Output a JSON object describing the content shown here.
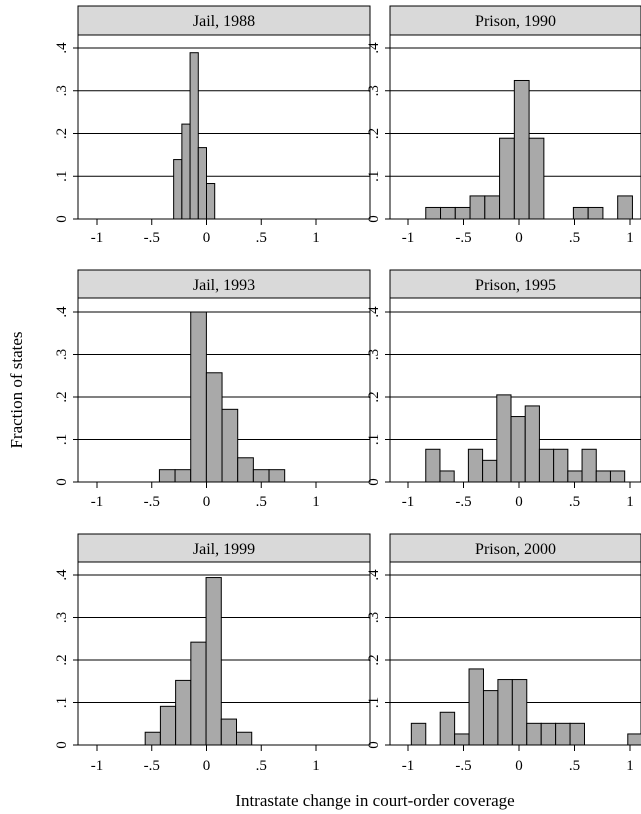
{
  "figure": {
    "ylabel": "Fraction of states",
    "xlabel": "Intrastate change in court-order coverage"
  },
  "style": {
    "bar_fill": "#a9a9a9",
    "header_fill": "#d9d9d9",
    "line": "#000000"
  },
  "chart_data": [
    {
      "type": "bar",
      "title": "Jail, 1988",
      "xticks": [
        "-1",
        "-.5",
        "0",
        ".5",
        "1"
      ],
      "yticks": [
        "0",
        ".1",
        ".2",
        ".3",
        ".4"
      ],
      "xlim": [
        -1.1,
        1.1
      ],
      "ylim": [
        0,
        0.4
      ],
      "bin_width": 0.075,
      "bins": [
        {
          "left": -0.3,
          "value": 0.139
        },
        {
          "left": -0.225,
          "value": 0.222
        },
        {
          "left": -0.15,
          "value": 0.389
        },
        {
          "left": -0.075,
          "value": 0.167
        },
        {
          "left": 0.0,
          "value": 0.083
        }
      ]
    },
    {
      "type": "bar",
      "title": "Prison, 1990",
      "xticks": [
        "-1",
        "-.5",
        "0",
        ".5",
        "1"
      ],
      "yticks": [
        "0",
        ".1",
        ".2",
        ".3",
        ".4"
      ],
      "xlim": [
        -1.1,
        1.1
      ],
      "ylim": [
        0,
        0.4
      ],
      "bin_width": 0.133,
      "bins": [
        {
          "left": -0.84,
          "value": 0.027
        },
        {
          "left": -0.707,
          "value": 0.027
        },
        {
          "left": -0.574,
          "value": 0.027
        },
        {
          "left": -0.441,
          "value": 0.054
        },
        {
          "left": -0.308,
          "value": 0.054
        },
        {
          "left": -0.175,
          "value": 0.189
        },
        {
          "left": -0.042,
          "value": 0.324
        },
        {
          "left": 0.091,
          "value": 0.189
        },
        {
          "left": 0.49,
          "value": 0.027
        },
        {
          "left": 0.623,
          "value": 0.027
        },
        {
          "left": 0.889,
          "value": 0.054
        }
      ]
    },
    {
      "type": "bar",
      "title": "Jail, 1993",
      "xticks": [
        "-1",
        "-.5",
        "0",
        ".5",
        "1"
      ],
      "yticks": [
        "0",
        ".1",
        ".2",
        ".3",
        ".4"
      ],
      "xlim": [
        -1.1,
        1.1
      ],
      "ylim": [
        0,
        0.4
      ],
      "bin_width": 0.143,
      "bins": [
        {
          "left": -0.43,
          "value": 0.029
        },
        {
          "left": -0.287,
          "value": 0.029
        },
        {
          "left": -0.144,
          "value": 0.4
        },
        {
          "left": -0.001,
          "value": 0.257
        },
        {
          "left": 0.142,
          "value": 0.171
        },
        {
          "left": 0.285,
          "value": 0.057
        },
        {
          "left": 0.428,
          "value": 0.029
        },
        {
          "left": 0.571,
          "value": 0.029
        }
      ]
    },
    {
      "type": "bar",
      "title": "Prison, 1995",
      "xticks": [
        "-1",
        "-.5",
        "0",
        ".5",
        "1"
      ],
      "yticks": [
        "0",
        ".1",
        ".2",
        ".3",
        ".4"
      ],
      "xlim": [
        -1.1,
        1.1
      ],
      "ylim": [
        0,
        0.4
      ],
      "bin_width": 0.128,
      "bins": [
        {
          "left": -0.84,
          "value": 0.077
        },
        {
          "left": -0.712,
          "value": 0.026
        },
        {
          "left": -0.456,
          "value": 0.077
        },
        {
          "left": -0.328,
          "value": 0.051
        },
        {
          "left": -0.2,
          "value": 0.205
        },
        {
          "left": -0.072,
          "value": 0.154
        },
        {
          "left": 0.056,
          "value": 0.179
        },
        {
          "left": 0.184,
          "value": 0.077
        },
        {
          "left": 0.312,
          "value": 0.077
        },
        {
          "left": 0.44,
          "value": 0.026
        },
        {
          "left": 0.568,
          "value": 0.077
        },
        {
          "left": 0.696,
          "value": 0.026
        },
        {
          "left": 0.824,
          "value": 0.026
        }
      ]
    },
    {
      "type": "bar",
      "title": "Jail, 1999",
      "xticks": [
        "-1",
        "-.5",
        "0",
        ".5",
        "1"
      ],
      "yticks": [
        "0",
        ".1",
        ".2",
        ".3",
        ".4"
      ],
      "xlim": [
        -1.1,
        1.1
      ],
      "ylim": [
        0,
        0.4
      ],
      "bin_width": 0.139,
      "bins": [
        {
          "left": -0.56,
          "value": 0.03
        },
        {
          "left": -0.421,
          "value": 0.091
        },
        {
          "left": -0.282,
          "value": 0.152
        },
        {
          "left": -0.143,
          "value": 0.242
        },
        {
          "left": -0.004,
          "value": 0.394
        },
        {
          "left": 0.135,
          "value": 0.061
        },
        {
          "left": 0.274,
          "value": 0.03
        }
      ]
    },
    {
      "type": "bar",
      "title": "Prison, 2000",
      "xticks": [
        "-1",
        "-.5",
        "0",
        ".5",
        "1"
      ],
      "yticks": [
        "0",
        ".1",
        ".2",
        ".3",
        ".4"
      ],
      "xlim": [
        -1.1,
        1.1
      ],
      "ylim": [
        0,
        0.4
      ],
      "bin_width": 0.13,
      "bins": [
        {
          "left": -0.97,
          "value": 0.051
        },
        {
          "left": -0.71,
          "value": 0.077
        },
        {
          "left": -0.58,
          "value": 0.026
        },
        {
          "left": -0.45,
          "value": 0.179
        },
        {
          "left": -0.32,
          "value": 0.128
        },
        {
          "left": -0.19,
          "value": 0.154
        },
        {
          "left": -0.06,
          "value": 0.154
        },
        {
          "left": 0.07,
          "value": 0.051
        },
        {
          "left": 0.2,
          "value": 0.051
        },
        {
          "left": 0.33,
          "value": 0.051
        },
        {
          "left": 0.46,
          "value": 0.051
        },
        {
          "left": 0.98,
          "value": 0.026
        }
      ]
    }
  ]
}
